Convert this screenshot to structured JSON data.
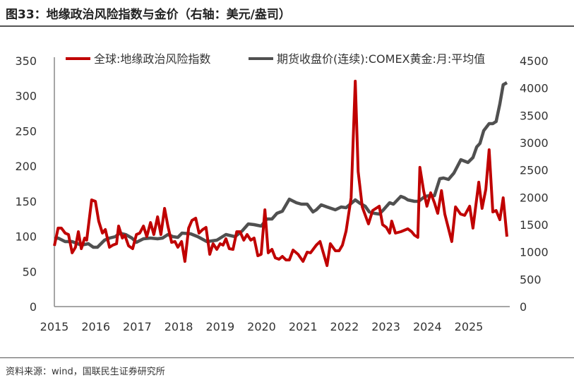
{
  "title": "图33：地缘政治风险指数与金价（右轴：美元/盎司）",
  "source": "资料来源：wind，国联民生证券研究所",
  "chart_data": {
    "type": "line",
    "title": "图33：地缘政治风险指数与金价（右轴：美元/盎司）",
    "xlabel": "",
    "ylabel": "",
    "xlim": [
      2015,
      2026
    ],
    "ylim": [
      0,
      350
    ],
    "y2lim": [
      0,
      4500
    ],
    "legend_position": "top",
    "grid": false,
    "x_ticks": [
      "2015",
      "2016",
      "2017",
      "2018",
      "2019",
      "2020",
      "2021",
      "2022",
      "2023",
      "2024",
      "2025"
    ],
    "y_ticks": [
      "0",
      "50",
      "100",
      "150",
      "200",
      "250",
      "300",
      "350"
    ],
    "y2_ticks": [
      "0",
      "500",
      "1000",
      "1500",
      "2000",
      "2500",
      "3000",
      "3500",
      "4000",
      "4500"
    ],
    "series": [
      {
        "name": "全球:地缘政治风险指数",
        "axis": "left",
        "color": "#c00000",
        "points": [
          [
            2015.0,
            86.5
          ],
          [
            2015.09,
            111.7
          ],
          [
            2015.17,
            111.7
          ],
          [
            2015.26,
            104.6
          ],
          [
            2015.34,
            102.6
          ],
          [
            2015.43,
            76.5
          ],
          [
            2015.51,
            84.5
          ],
          [
            2015.58,
            106.6
          ],
          [
            2015.65,
            82.5
          ],
          [
            2015.73,
            97.6
          ],
          [
            2015.78,
            94.6
          ],
          [
            2015.9,
            151.9
          ],
          [
            2015.99,
            149.9
          ],
          [
            2016.07,
            121.7
          ],
          [
            2016.16,
            104.6
          ],
          [
            2016.23,
            109.7
          ],
          [
            2016.33,
            84.5
          ],
          [
            2016.41,
            87.5
          ],
          [
            2016.5,
            89.5
          ],
          [
            2016.55,
            114.7
          ],
          [
            2016.64,
            97.6
          ],
          [
            2016.7,
            101.6
          ],
          [
            2016.79,
            86.5
          ],
          [
            2016.89,
            82.5
          ],
          [
            2016.98,
            102.6
          ],
          [
            2017.06,
            104.6
          ],
          [
            2017.15,
            114.7
          ],
          [
            2017.23,
            99.6
          ],
          [
            2017.32,
            119.7
          ],
          [
            2017.4,
            102.6
          ],
          [
            2017.49,
            127.8
          ],
          [
            2017.57,
            102.6
          ],
          [
            2017.66,
            139.8
          ],
          [
            2017.74,
            114.7
          ],
          [
            2017.83,
            91.5
          ],
          [
            2017.91,
            92.6
          ],
          [
            2017.98,
            84.5
          ],
          [
            2018.07,
            92.6
          ],
          [
            2018.15,
            64.4
          ],
          [
            2018.24,
            111.7
          ],
          [
            2018.32,
            122.7
          ],
          [
            2018.41,
            125.8
          ],
          [
            2018.49,
            104.6
          ],
          [
            2018.58,
            109.7
          ],
          [
            2018.66,
            112.7
          ],
          [
            2018.75,
            74.4
          ],
          [
            2018.83,
            89.5
          ],
          [
            2018.92,
            81.5
          ],
          [
            2019.0,
            89.5
          ],
          [
            2019.07,
            87.5
          ],
          [
            2019.14,
            96.6
          ],
          [
            2019.22,
            82.5
          ],
          [
            2019.31,
            81.5
          ],
          [
            2019.4,
            106.6
          ],
          [
            2019.48,
            106.6
          ],
          [
            2019.57,
            94.6
          ],
          [
            2019.65,
            102.6
          ],
          [
            2019.74,
            94.6
          ],
          [
            2019.82,
            97.6
          ],
          [
            2019.91,
            72.4
          ],
          [
            2019.99,
            74.4
          ],
          [
            2020.08,
            137.8
          ],
          [
            2020.16,
            76.5
          ],
          [
            2020.25,
            81.5
          ],
          [
            2020.33,
            69.4
          ],
          [
            2020.42,
            67.4
          ],
          [
            2020.5,
            71.4
          ],
          [
            2020.59,
            66.4
          ],
          [
            2020.67,
            66.4
          ],
          [
            2020.76,
            80.5
          ],
          [
            2020.88,
            74.4
          ],
          [
            2021.0,
            64.4
          ],
          [
            2021.1,
            77.5
          ],
          [
            2021.18,
            76.5
          ],
          [
            2021.32,
            87.5
          ],
          [
            2021.41,
            92.6
          ],
          [
            2021.58,
            58.4
          ],
          [
            2021.66,
            89.5
          ],
          [
            2021.78,
            79.5
          ],
          [
            2021.87,
            79.5
          ],
          [
            2021.95,
            87.5
          ],
          [
            2022.04,
            107.6
          ],
          [
            2022.16,
            154.9
          ],
          [
            2022.26,
            320.9
          ],
          [
            2022.33,
            192.2
          ],
          [
            2022.43,
            141.9
          ],
          [
            2022.58,
            117.7
          ],
          [
            2022.68,
            136.8
          ],
          [
            2022.84,
            142.9
          ],
          [
            2022.92,
            116.7
          ],
          [
            2023.01,
            112.7
          ],
          [
            2023.09,
            104.6
          ],
          [
            2023.14,
            121.7
          ],
          [
            2023.23,
            104.6
          ],
          [
            2023.36,
            106.6
          ],
          [
            2023.53,
            110.7
          ],
          [
            2023.62,
            106.6
          ],
          [
            2023.69,
            101.6
          ],
          [
            2023.77,
            98.6
          ],
          [
            2023.82,
            198.2
          ],
          [
            2023.91,
            165.0
          ],
          [
            2023.99,
            142.9
          ],
          [
            2024.08,
            162.0
          ],
          [
            2024.17,
            147.9
          ],
          [
            2024.25,
            132.8
          ],
          [
            2024.34,
            165.0
          ],
          [
            2024.42,
            131.8
          ],
          [
            2024.59,
            92.6
          ],
          [
            2024.68,
            141.9
          ],
          [
            2024.8,
            131.8
          ],
          [
            2024.9,
            129.8
          ],
          [
            2025.02,
            142.9
          ],
          [
            2025.1,
            111.7
          ],
          [
            2025.24,
            177.1
          ],
          [
            2025.32,
            139.8
          ],
          [
            2025.41,
            167.0
          ],
          [
            2025.49,
            223.3
          ],
          [
            2025.58,
            134.8
          ],
          [
            2025.66,
            136.8
          ],
          [
            2025.75,
            123.7
          ],
          [
            2025.83,
            154.9
          ],
          [
            2025.92,
            99.6
          ]
        ]
      },
      {
        "name": "期货收盘价(连续):COMEX黄金:月:平均值",
        "axis": "right",
        "color": "#505050",
        "points": [
          [
            2015.0,
            1241
          ],
          [
            2015.09,
            1254
          ],
          [
            2015.26,
            1190
          ],
          [
            2015.43,
            1190
          ],
          [
            2015.65,
            1125
          ],
          [
            2015.82,
            1151
          ],
          [
            2015.94,
            1086
          ],
          [
            2016.04,
            1086
          ],
          [
            2016.21,
            1215
          ],
          [
            2016.33,
            1254
          ],
          [
            2016.47,
            1280
          ],
          [
            2016.58,
            1345
          ],
          [
            2016.72,
            1319
          ],
          [
            2016.87,
            1254
          ],
          [
            2016.98,
            1177
          ],
          [
            2017.15,
            1241
          ],
          [
            2017.32,
            1254
          ],
          [
            2017.49,
            1241
          ],
          [
            2017.61,
            1254
          ],
          [
            2017.74,
            1319
          ],
          [
            2017.86,
            1280
          ],
          [
            2017.98,
            1267
          ],
          [
            2018.08,
            1345
          ],
          [
            2018.29,
            1332
          ],
          [
            2018.46,
            1280
          ],
          [
            2018.68,
            1190
          ],
          [
            2018.92,
            1215
          ],
          [
            2019.14,
            1319
          ],
          [
            2019.36,
            1280
          ],
          [
            2019.53,
            1384
          ],
          [
            2019.68,
            1513
          ],
          [
            2019.82,
            1500
          ],
          [
            2019.99,
            1474
          ],
          [
            2020.13,
            1603
          ],
          [
            2020.25,
            1603
          ],
          [
            2020.37,
            1707
          ],
          [
            2020.5,
            1746
          ],
          [
            2020.67,
            1965
          ],
          [
            2020.84,
            1901
          ],
          [
            2020.96,
            1875
          ],
          [
            2021.1,
            1875
          ],
          [
            2021.24,
            1733
          ],
          [
            2021.32,
            1771
          ],
          [
            2021.44,
            1862
          ],
          [
            2021.58,
            1823
          ],
          [
            2021.78,
            1771
          ],
          [
            2021.92,
            1823
          ],
          [
            2022.04,
            1810
          ],
          [
            2022.16,
            1888
          ],
          [
            2022.26,
            1952
          ],
          [
            2022.38,
            1888
          ],
          [
            2022.5,
            1836
          ],
          [
            2022.6,
            1733
          ],
          [
            2022.72,
            1707
          ],
          [
            2022.84,
            1694
          ],
          [
            2022.94,
            1771
          ],
          [
            2023.09,
            1901
          ],
          [
            2023.18,
            1875
          ],
          [
            2023.36,
            2017
          ],
          [
            2023.45,
            1991
          ],
          [
            2023.53,
            1952
          ],
          [
            2023.69,
            1927
          ],
          [
            2023.79,
            1927
          ],
          [
            2023.94,
            2017
          ],
          [
            2024.05,
            2030
          ],
          [
            2024.17,
            2030
          ],
          [
            2024.3,
            2340
          ],
          [
            2024.39,
            2353
          ],
          [
            2024.51,
            2327
          ],
          [
            2024.64,
            2444
          ],
          [
            2024.81,
            2689
          ],
          [
            2024.98,
            2638
          ],
          [
            2025.1,
            2728
          ],
          [
            2025.19,
            2922
          ],
          [
            2025.27,
            2987
          ],
          [
            2025.36,
            3220
          ],
          [
            2025.49,
            3349
          ],
          [
            2025.58,
            3349
          ],
          [
            2025.66,
            3388
          ],
          [
            2025.75,
            3711
          ],
          [
            2025.83,
            4060
          ],
          [
            2025.92,
            4099
          ]
        ]
      }
    ]
  }
}
